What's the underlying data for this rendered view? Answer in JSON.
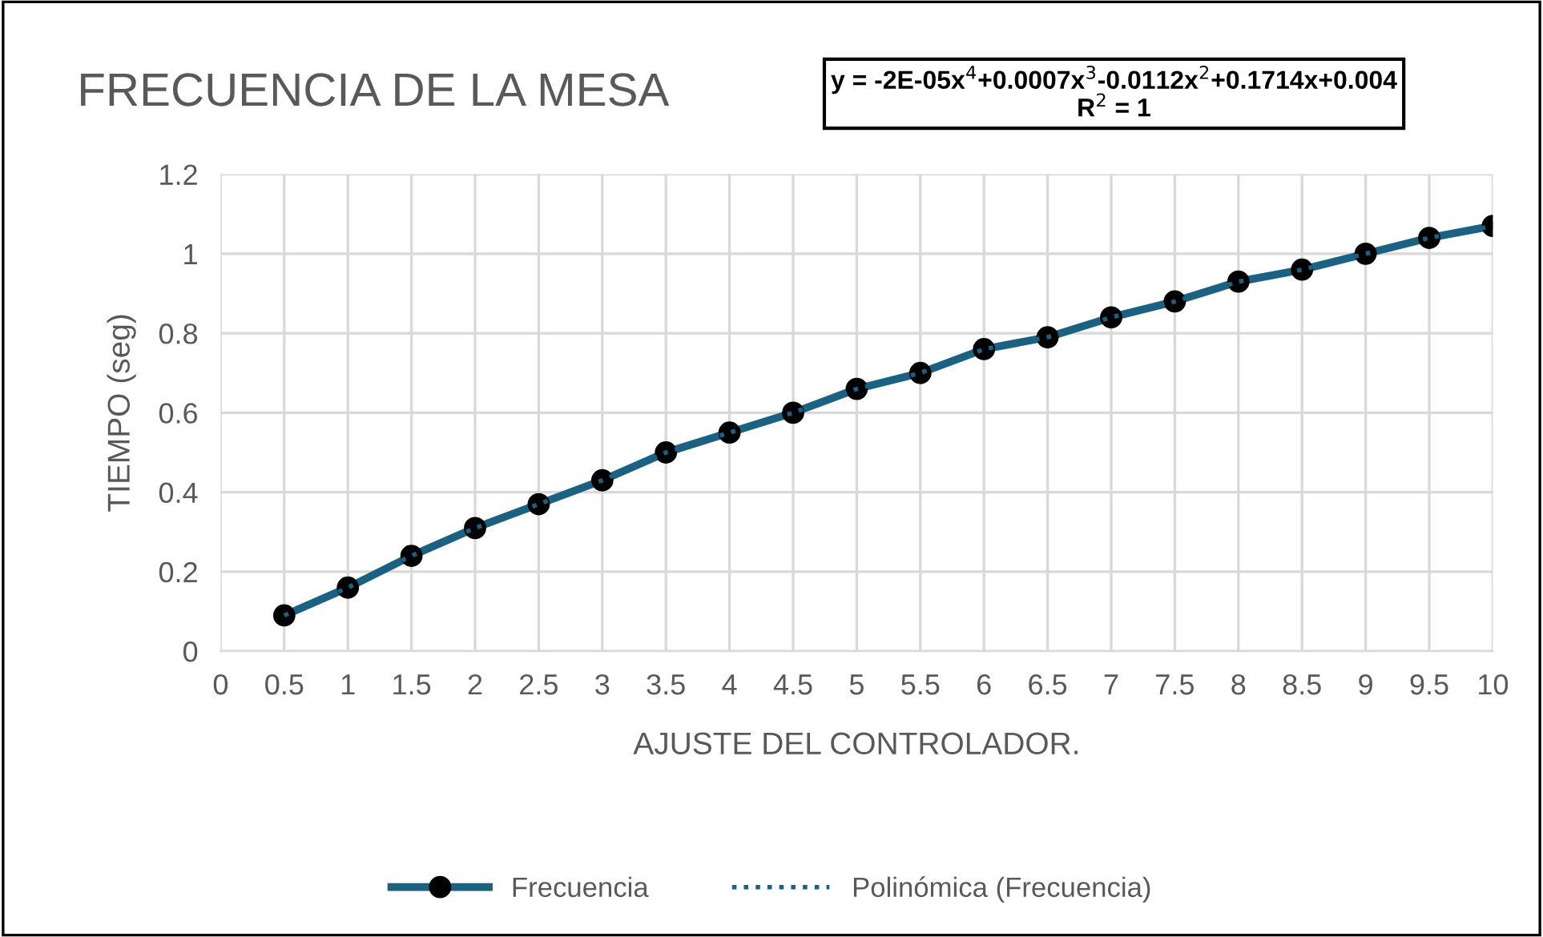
{
  "chart_data": {
    "type": "line",
    "title": "FRECUENCIA DE LA MESA",
    "xlabel": "AJUSTE DEL CONTROLADOR.",
    "ylabel": "TIEMPO (seg)",
    "categories": [
      "0",
      "0.5",
      "1",
      "1.5",
      "2",
      "2.5",
      "3",
      "3.5",
      "4",
      "4.5",
      "5",
      "5.5",
      "6",
      "6.5",
      "7",
      "7.5",
      "8",
      "8.5",
      "9",
      "9.5",
      "10"
    ],
    "series": [
      {
        "name": "Frecuencia",
        "color": "#1b6282",
        "marker": "circle",
        "line_style": "solid",
        "values": [
          null,
          0.09,
          0.16,
          0.24,
          0.31,
          0.37,
          0.43,
          0.5,
          0.55,
          0.6,
          0.66,
          0.7,
          0.76,
          0.79,
          0.84,
          0.88,
          0.93,
          0.96,
          1.0,
          1.04,
          1.07
        ]
      },
      {
        "name": "Polinómica (Frecuencia)",
        "color": "#1b6282",
        "type": "line",
        "marker": "none",
        "line_style": "dotted",
        "values": [
          null,
          0.09,
          0.16,
          0.24,
          0.31,
          0.37,
          0.43,
          0.5,
          0.55,
          0.6,
          0.66,
          0.7,
          0.76,
          0.79,
          0.84,
          0.88,
          0.93,
          0.96,
          1.0,
          1.04,
          1.07
        ]
      }
    ],
    "ylim": [
      0,
      1.2
    ],
    "yticks": [
      0,
      0.2,
      0.4,
      0.6,
      0.8,
      1,
      1.2
    ],
    "grid": true,
    "legend": "bottom",
    "annotations": [
      "y = -2E-05x$^{4}$+0.0007x$^{3}$-0.0112x$^{2}$+0.1714x+0.004\nR$^{2}$ = 1"
    ]
  }
}
